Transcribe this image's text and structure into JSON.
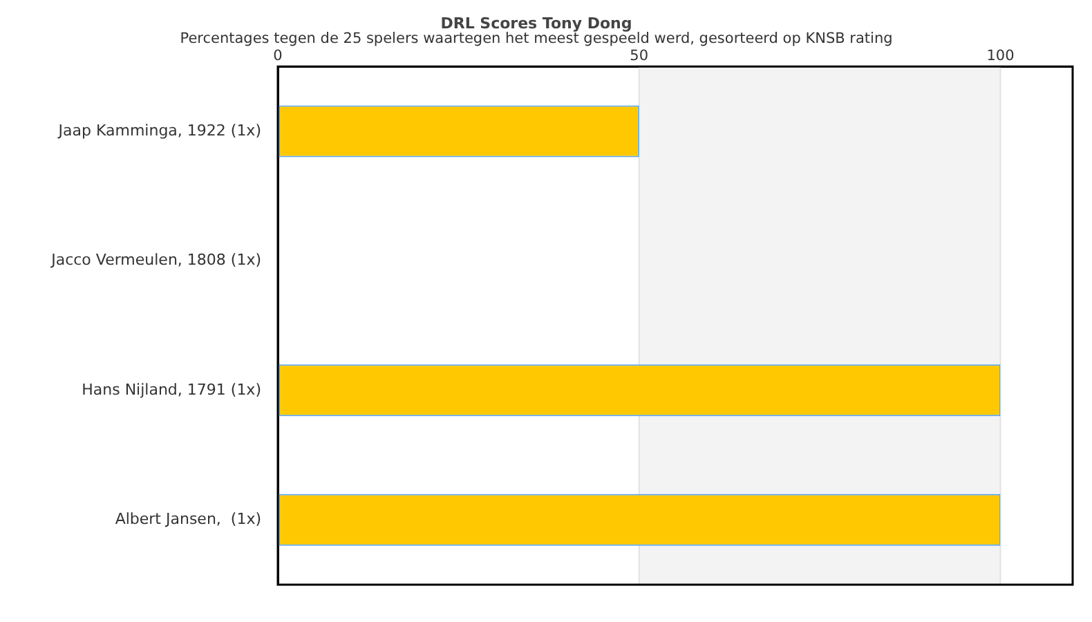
{
  "chart_data": {
    "type": "bar",
    "orientation": "horizontal",
    "title": "DRL Scores Tony Dong",
    "subtitle": "Percentages tegen de 25 spelers waartegen het meest gespeeld werd, gesorteerd op KNSB rating",
    "categories": [
      "Jaap Kamminga, 1922 (1x)",
      "Jacco Vermeulen, 1808 (1x)",
      "Hans Nijland, 1791 (1x)",
      "Albert Jansen,  (1x)"
    ],
    "values": [
      50,
      0,
      100,
      100
    ],
    "color": "#ffc800",
    "xlim": [
      0,
      110
    ],
    "xticks": [
      0,
      50,
      100
    ],
    "bands": [
      {
        "axis": "x",
        "from": 50,
        "to": 100,
        "color": "#f3f3f3"
      }
    ],
    "grid": "x",
    "legend": false
  }
}
